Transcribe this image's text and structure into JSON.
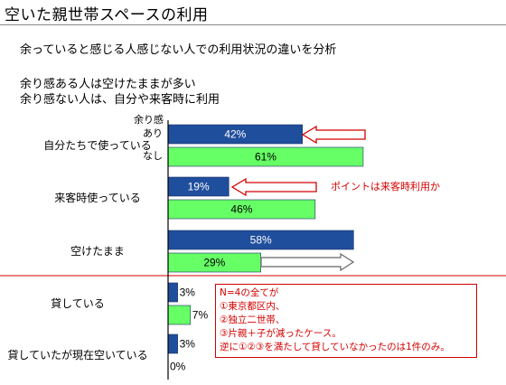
{
  "header": {
    "title": "空いた親世帯スペースの利用",
    "subtitle": "余っていると感じる人感じない人での利用状況の違いを分析",
    "notes": [
      "余り感ある人は空けたままが多い",
      "余り感ない人は、自分や来客時に利用"
    ]
  },
  "colors": {
    "ari": "#1f4e9c",
    "nashi": "#66ff66",
    "accent": "#d40000",
    "axis": "#000000"
  },
  "legend_label": "余り感",
  "chart_data": {
    "type": "bar",
    "orientation": "horizontal",
    "categories": [
      "自分たちで使っている",
      "来客時使っている",
      "空けたまま",
      "貸している",
      "貸していたが現在空いている"
    ],
    "series": [
      {
        "name": "あり",
        "values": [
          42,
          19,
          58,
          3,
          3
        ]
      },
      {
        "name": "なし",
        "values": [
          61,
          46,
          29,
          7,
          0
        ]
      }
    ],
    "data_labels": [
      [
        "42%",
        "19%",
        "58%",
        "3%",
        "3%"
      ],
      [
        "61%",
        "46%",
        "29%",
        "7%",
        "0%"
      ]
    ],
    "xlim": [
      0,
      70
    ]
  },
  "annotations": {
    "point_text": "ポイントは来客時利用か",
    "box_lines": [
      "N=4の全てが",
      "①東京都区内、",
      "②独立二世帯、",
      "③片親＋子が減ったケース。",
      "逆に①②③を満たして貸していなかったのは1件のみ。"
    ]
  }
}
